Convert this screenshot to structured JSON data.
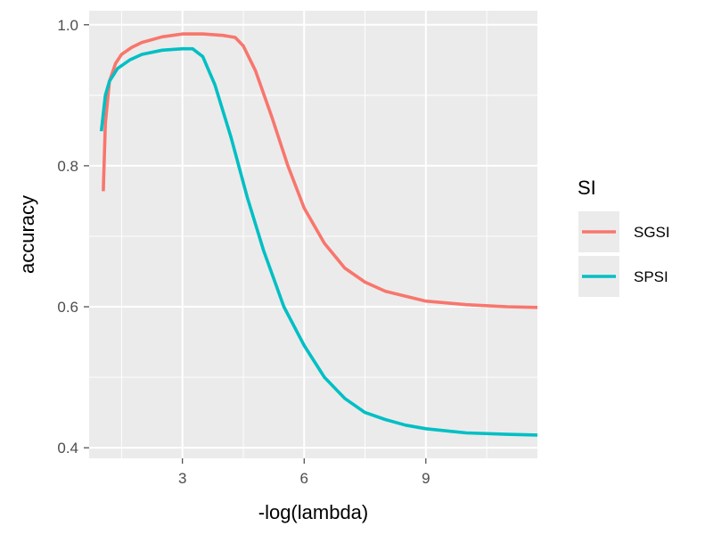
{
  "chart_data": {
    "type": "line",
    "xlabel": "-log(lambda)",
    "ylabel": "accuracy",
    "xlim": [
      0.7,
      11.75
    ],
    "ylim": [
      0.385,
      1.02
    ],
    "x_ticks": [
      3,
      6,
      9
    ],
    "x_tick_labels": [
      "3",
      "6",
      "9"
    ],
    "y_ticks": [
      0.4,
      0.6,
      0.8,
      1.0
    ],
    "y_tick_labels": [
      "0.4",
      "0.6",
      "0.8",
      "1.0"
    ],
    "grid": true,
    "legend": {
      "title": "SI",
      "position": "right"
    },
    "series": [
      {
        "name": "SGSI",
        "color": "#F8766D",
        "x": [
          1.05,
          1.1,
          1.2,
          1.35,
          1.5,
          1.75,
          2.0,
          2.5,
          3.0,
          3.5,
          4.0,
          4.3,
          4.5,
          4.8,
          5.2,
          5.6,
          6.0,
          6.5,
          7.0,
          7.5,
          8.0,
          9.0,
          10.0,
          11.0,
          11.75
        ],
        "y": [
          0.764,
          0.86,
          0.92,
          0.945,
          0.958,
          0.968,
          0.975,
          0.983,
          0.987,
          0.987,
          0.985,
          0.982,
          0.97,
          0.935,
          0.87,
          0.8,
          0.74,
          0.69,
          0.655,
          0.635,
          0.622,
          0.608,
          0.603,
          0.6,
          0.599
        ]
      },
      {
        "name": "SPSI",
        "color": "#00BFC4",
        "x": [
          1.0,
          1.1,
          1.2,
          1.4,
          1.7,
          2.0,
          2.5,
          3.0,
          3.25,
          3.5,
          3.8,
          4.2,
          4.6,
          5.0,
          5.5,
          6.0,
          6.5,
          7.0,
          7.5,
          8.0,
          8.5,
          9.0,
          10.0,
          11.0,
          11.75
        ],
        "y": [
          0.849,
          0.9,
          0.92,
          0.938,
          0.95,
          0.958,
          0.964,
          0.966,
          0.966,
          0.955,
          0.915,
          0.84,
          0.755,
          0.68,
          0.6,
          0.545,
          0.5,
          0.47,
          0.45,
          0.44,
          0.432,
          0.427,
          0.421,
          0.419,
          0.418
        ]
      }
    ]
  }
}
